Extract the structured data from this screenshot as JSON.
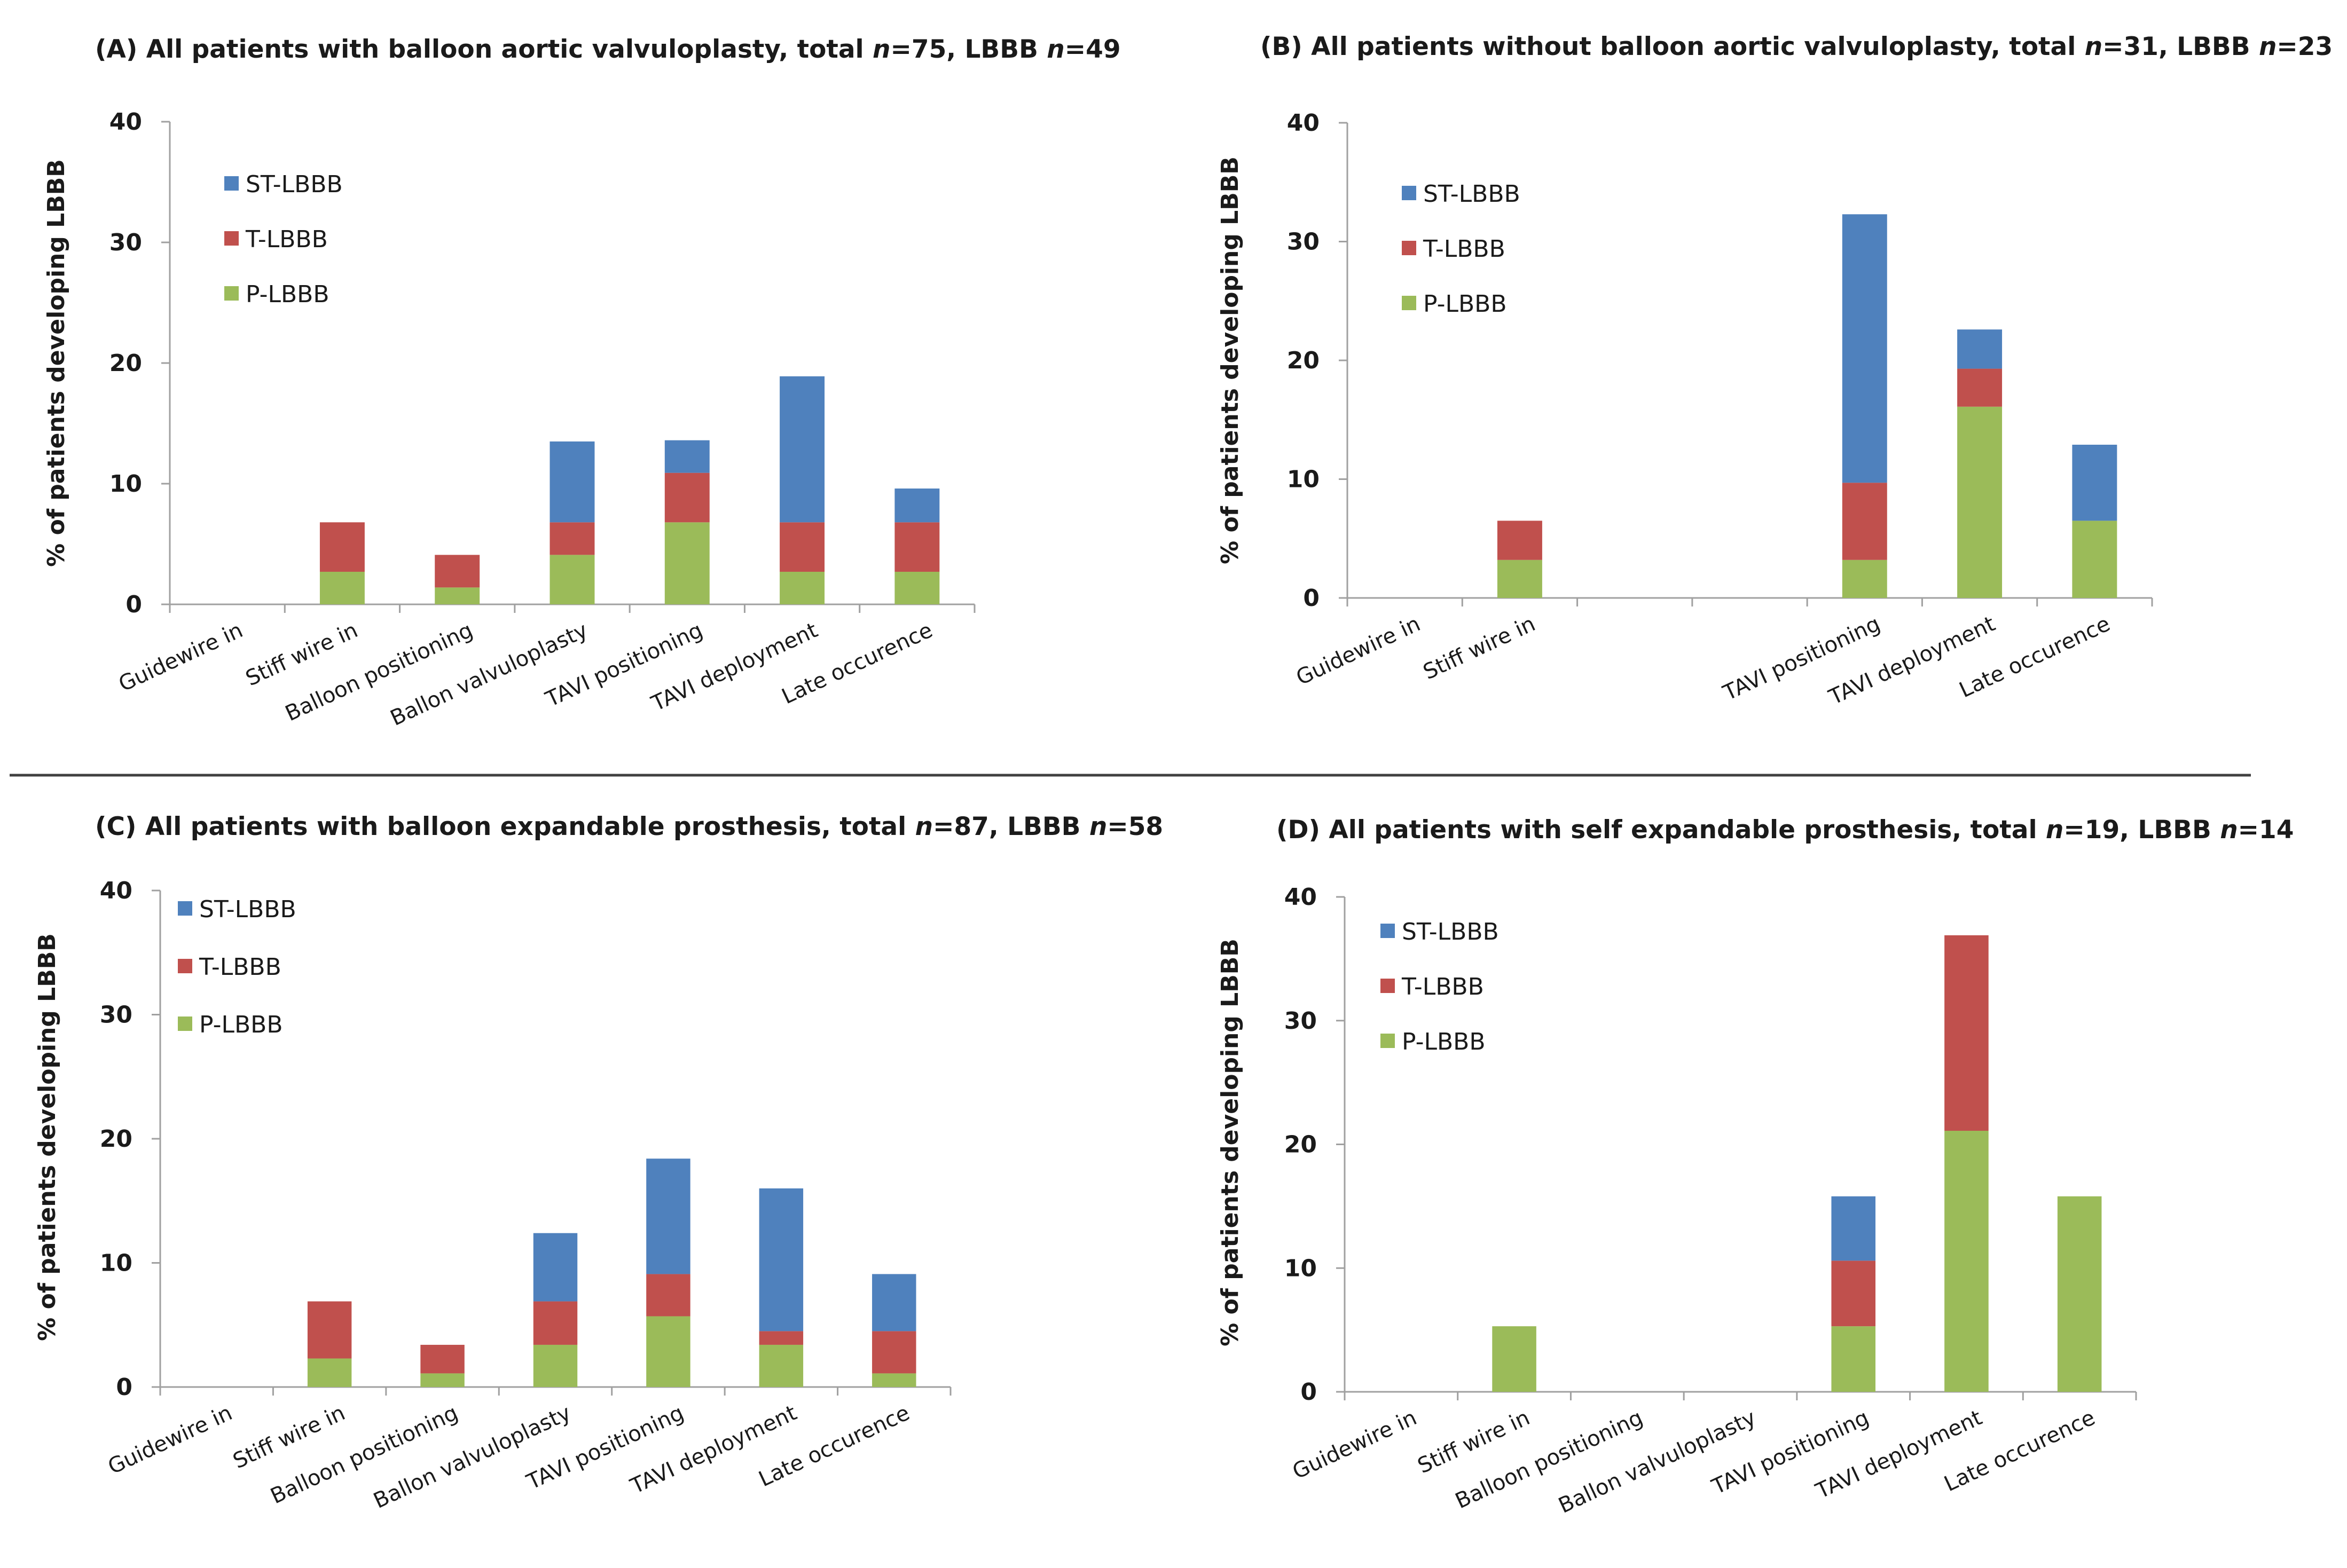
{
  "chart_data": [
    {
      "type": "bar",
      "stacked": true,
      "title": {
        "prefix": "(A) All patients with balloon aortic valvuloplasty, total ",
        "n_total": "75",
        "mid": ", LBBB ",
        "n_lbbb": "49"
      },
      "ylabel": "% of patients developing LBBB",
      "ylim": [
        0,
        40
      ],
      "yticks": [
        "0",
        "10",
        "20",
        "30",
        "40"
      ],
      "legend_position": "top-left",
      "categories": [
        "Guidewire in",
        "Stiff wire in",
        "Balloon positioning",
        "Ballon valvuloplasty",
        "TAVI positioning",
        "TAVI deployment",
        "Late occurence"
      ],
      "series": [
        {
          "name": "P-LBBB",
          "color": "#9bbb59",
          "values": [
            0,
            2.7,
            1.4,
            4.1,
            6.8,
            2.7,
            2.7
          ]
        },
        {
          "name": "T-LBBB",
          "color": "#c0504d",
          "values": [
            0,
            4.1,
            2.7,
            2.7,
            4.1,
            4.1,
            4.1
          ]
        },
        {
          "name": "ST-LBBB",
          "color": "#4f81bd",
          "values": [
            0,
            0,
            0,
            6.7,
            2.7,
            12.1,
            2.8
          ]
        }
      ]
    },
    {
      "type": "bar",
      "stacked": true,
      "title": {
        "prefix": "(B) All patients without balloon aortic valvuloplasty, total ",
        "n_total": "31",
        "mid": ", LBBB ",
        "n_lbbb": "23"
      },
      "ylabel": "% of patients developing LBBB",
      "ylim": [
        0,
        40
      ],
      "yticks": [
        "0",
        "10",
        "20",
        "30",
        "40"
      ],
      "legend_position": "top-left",
      "categories": [
        "Guidewire in",
        "Stiff wire in",
        "",
        "",
        "TAVI positioning",
        "TAVI deployment",
        "Late occurence"
      ],
      "series": [
        {
          "name": "P-LBBB",
          "color": "#9bbb59",
          "values": [
            0,
            3.2,
            0,
            0,
            3.2,
            16.1,
            6.5
          ]
        },
        {
          "name": "T-LBBB",
          "color": "#c0504d",
          "values": [
            0,
            3.3,
            0,
            0,
            6.5,
            3.2,
            0
          ]
        },
        {
          "name": "ST-LBBB",
          "color": "#4f81bd",
          "values": [
            0,
            0,
            0,
            0,
            22.6,
            3.3,
            6.4
          ]
        }
      ]
    },
    {
      "type": "bar",
      "stacked": true,
      "title": {
        "prefix": "(C) All patients with balloon expandable prosthesis, total ",
        "n_total": "87",
        "mid": ", LBBB ",
        "n_lbbb": "58"
      },
      "ylabel": "% of patients developing LBBB",
      "ylim": [
        0,
        40
      ],
      "yticks": [
        "0",
        "10",
        "20",
        "30",
        "40"
      ],
      "legend_position": "top-left",
      "categories": [
        "Guidewire in",
        "Stiff wire in",
        "Balloon positioning",
        "Ballon valvuloplasty",
        "TAVI positioning",
        "TAVI deployment",
        "Late occurence"
      ],
      "series": [
        {
          "name": "P-LBBB",
          "color": "#9bbb59",
          "values": [
            0,
            2.3,
            1.1,
            3.4,
            5.7,
            3.4,
            1.1
          ]
        },
        {
          "name": "T-LBBB",
          "color": "#c0504d",
          "values": [
            0,
            4.6,
            2.3,
            3.5,
            3.4,
            1.1,
            3.4
          ]
        },
        {
          "name": "ST-LBBB",
          "color": "#4f81bd",
          "values": [
            0,
            0,
            0,
            5.5,
            9.3,
            11.5,
            4.6
          ]
        }
      ]
    },
    {
      "type": "bar",
      "stacked": true,
      "title": {
        "prefix": "(D) All patients with self expandable prosthesis, total ",
        "n_total": "19",
        "mid": ", LBBB ",
        "n_lbbb": "14"
      },
      "ylabel": "% of patients developing LBBB",
      "ylim": [
        0,
        40
      ],
      "yticks": [
        "0",
        "10",
        "20",
        "30",
        "40"
      ],
      "legend_position": "top-left",
      "categories": [
        "Guidewire in",
        "Stiff wire in",
        "Balloon positioning",
        "Ballon valvuloplasty",
        "TAVI positioning",
        "TAVI deployment",
        "Late occurence"
      ],
      "series": [
        {
          "name": "P-LBBB",
          "color": "#9bbb59",
          "values": [
            0,
            5.3,
            0,
            0,
            5.3,
            21.1,
            15.8
          ]
        },
        {
          "name": "T-LBBB",
          "color": "#c0504d",
          "values": [
            0,
            0,
            0,
            0,
            5.3,
            15.8,
            0
          ]
        },
        {
          "name": "ST-LBBB",
          "color": "#4f81bd",
          "values": [
            0,
            0,
            0,
            0,
            5.2,
            0,
            0
          ]
        }
      ]
    }
  ],
  "n_symbol": "n",
  "eq_sign": "="
}
